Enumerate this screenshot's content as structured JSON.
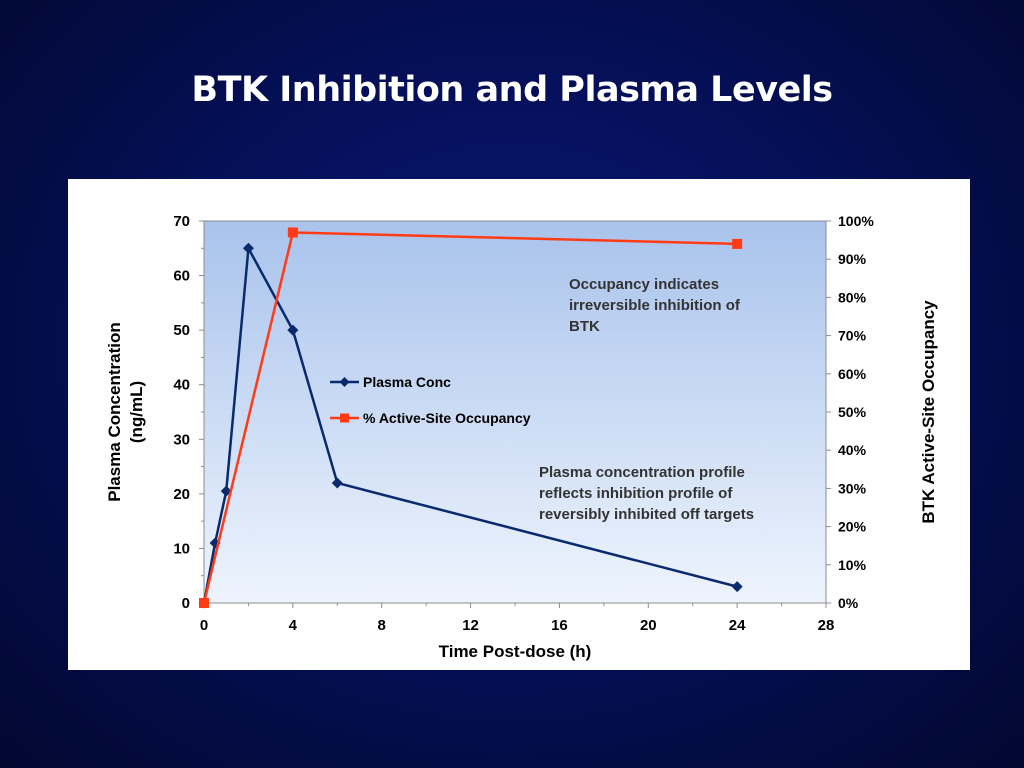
{
  "slide": {
    "title": "BTK Inhibition and Plasma Levels"
  },
  "annotations": {
    "occupancy": [
      "Occupancy indicates",
      "irreversible inhibition of",
      "BTK"
    ],
    "plasma": [
      "Plasma concentration profile",
      "reflects inhibition profile of",
      "reversibly inhibited off targets"
    ]
  },
  "chart_data": {
    "type": "line",
    "title": "",
    "xlabel": "Time Post-dose (h)",
    "ylabel": [
      "Plasma Concentration",
      "(ng/mL)"
    ],
    "y2label": "BTK Active-Site Occupancy",
    "xlim": [
      0,
      28
    ],
    "ylim": [
      0,
      70
    ],
    "y2lim": [
      0,
      100
    ],
    "xticks": [
      0,
      4,
      8,
      12,
      16,
      20,
      24,
      28
    ],
    "yticks": [
      0,
      10,
      20,
      30,
      40,
      50,
      60,
      70
    ],
    "y2ticks": [
      "0%",
      "10%",
      "20%",
      "30%",
      "40%",
      "50%",
      "60%",
      "70%",
      "80%",
      "90%",
      "100%"
    ],
    "grid": false,
    "legend_position": "center-left",
    "series": [
      {
        "name": "Plasma Conc",
        "axis": "left",
        "marker": "diamond",
        "color": "#0a2a6e",
        "x": [
          0,
          0.5,
          1,
          2,
          4,
          6,
          24
        ],
        "y": [
          0,
          11,
          20.5,
          65,
          50,
          22,
          3
        ]
      },
      {
        "name": "% Active-Site Occupancy",
        "axis": "right",
        "marker": "square",
        "color": "#ff3b16",
        "x": [
          0,
          4,
          24
        ],
        "y": [
          0,
          97,
          94
        ]
      }
    ]
  }
}
